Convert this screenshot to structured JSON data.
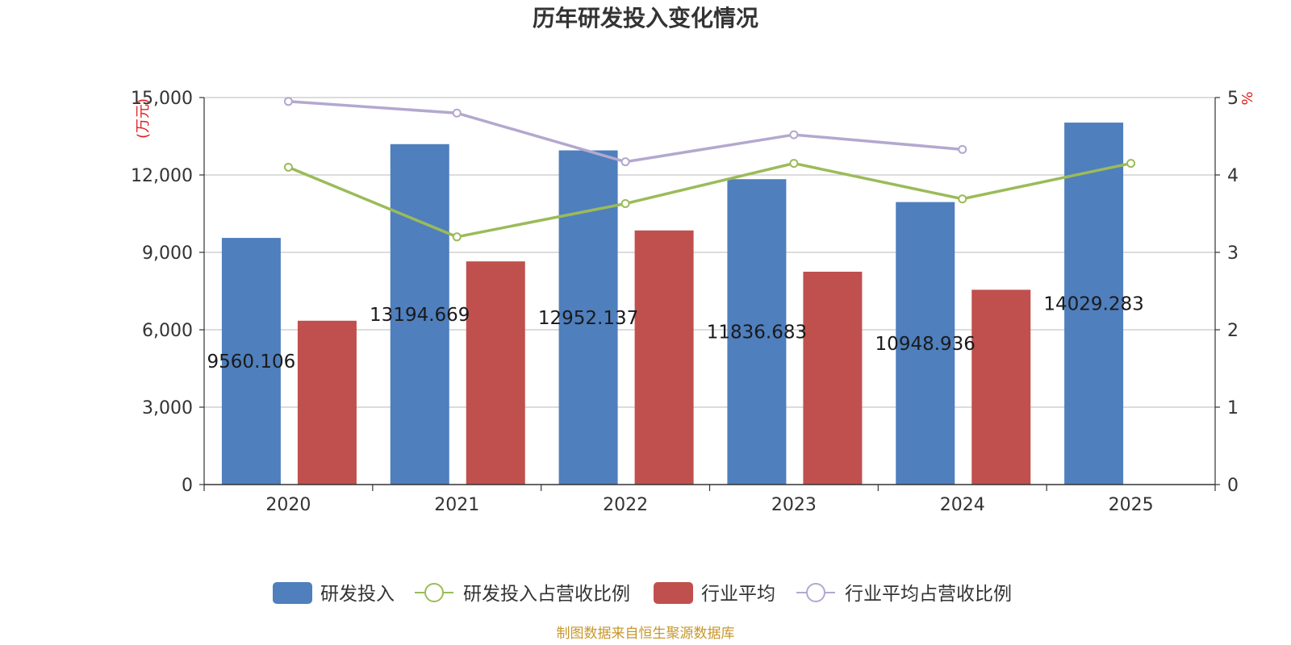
{
  "chart_data": {
    "type": "bar",
    "title": "历年研发投入变化情况",
    "categories": [
      "2020",
      "2021",
      "2022",
      "2023",
      "2024",
      "2025"
    ],
    "y_left": {
      "unit": "(万元)",
      "ylim": [
        0,
        15000
      ],
      "ticks": [
        "0",
        "3,000",
        "6,000",
        "9,000",
        "12,000",
        "15,000"
      ]
    },
    "y_right": {
      "unit": "%",
      "ylim": [
        0,
        5
      ],
      "ticks": [
        "0",
        "1",
        "2",
        "3",
        "4",
        "5"
      ]
    },
    "series": [
      {
        "name": "研发投入",
        "kind": "bar",
        "axis": "left",
        "color": "#4f7fbd",
        "values": [
          9560.106,
          13194.669,
          12952.137,
          11836.683,
          10948.936,
          14029.283
        ],
        "labels": [
          "9560.106",
          "13194.669",
          "12952.137",
          "11836.683",
          "10948.936",
          "14029.283"
        ]
      },
      {
        "name": "研发投入占营收比例",
        "kind": "line",
        "axis": "right",
        "color": "#9bbb59",
        "values": [
          4.1,
          3.2,
          3.63,
          4.15,
          3.69,
          4.15
        ]
      },
      {
        "name": "行业平均",
        "kind": "bar",
        "axis": "left",
        "color": "#c0504d",
        "values": [
          6350,
          8650,
          9850,
          8250,
          7550,
          null
        ]
      },
      {
        "name": "行业平均占营收比例",
        "kind": "line",
        "axis": "right",
        "color": "#b3a8cf",
        "values": [
          4.95,
          4.8,
          4.17,
          4.52,
          4.33,
          null
        ]
      }
    ],
    "legend_position": "bottom",
    "grid": true
  },
  "source_text": "制图数据来自恒生聚源数据库"
}
